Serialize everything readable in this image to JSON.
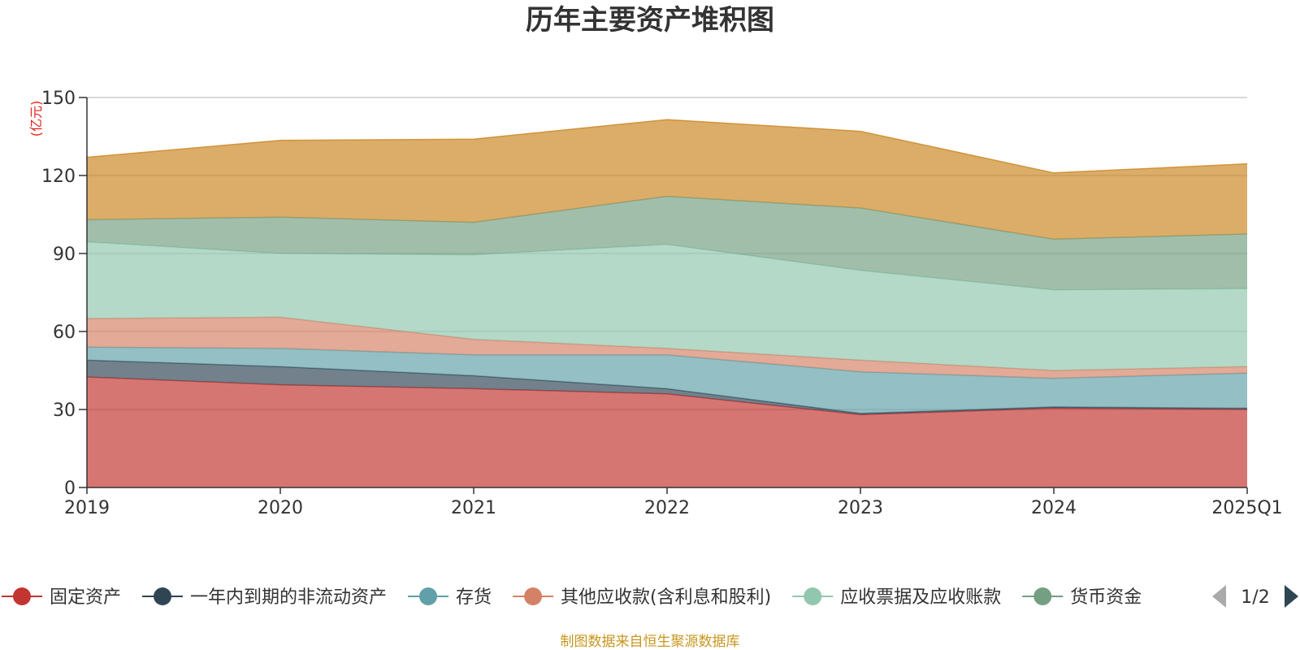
{
  "chart_data": {
    "type": "area",
    "stacked": true,
    "title": "历年主要资产堆积图",
    "unit_label": "(亿元)",
    "x": [
      "2019",
      "2020",
      "2021",
      "2022",
      "2023",
      "2024",
      "2025Q1"
    ],
    "yticks": [
      "0",
      "30",
      "60",
      "90",
      "120",
      "150"
    ],
    "ylim": [
      0,
      150
    ],
    "grid": true,
    "series": [
      {
        "name": "固定资产",
        "color": "#c23531",
        "values": [
          42.5,
          39.5,
          38.0,
          36.0,
          28.0,
          30.5,
          30.0
        ]
      },
      {
        "name": "一年内到期的非流动资产",
        "color": "#2f4554",
        "values": [
          6.5,
          7.0,
          5.0,
          2.0,
          0.5,
          0.5,
          0.5
        ]
      },
      {
        "name": "存货",
        "color": "#61a0a8",
        "values": [
          5.0,
          7.0,
          8.0,
          13.0,
          16.0,
          11.0,
          13.5
        ]
      },
      {
        "name": "其他应收款(含利息和股利)",
        "color": "#d48265",
        "values": [
          11.0,
          12.0,
          6.0,
          2.5,
          4.5,
          3.0,
          2.5
        ]
      },
      {
        "name": "应收票据及应收账款",
        "color": "#91c7ae",
        "values": [
          29.5,
          24.5,
          32.5,
          40.0,
          34.5,
          31.0,
          30.0
        ]
      },
      {
        "name": "货币资金",
        "color": "#749f83",
        "values": [
          8.5,
          14.0,
          12.5,
          18.5,
          24.0,
          19.5,
          21.0
        ]
      },
      {
        "name": "",
        "color": "#ca8622",
        "values": [
          24.0,
          29.5,
          32.0,
          29.5,
          29.5,
          25.5,
          27.0
        ]
      }
    ],
    "legend_position": "bottom"
  },
  "legend": {
    "page_indicator": "1/2"
  },
  "source_note": "制图数据来自恒生聚源数据库"
}
